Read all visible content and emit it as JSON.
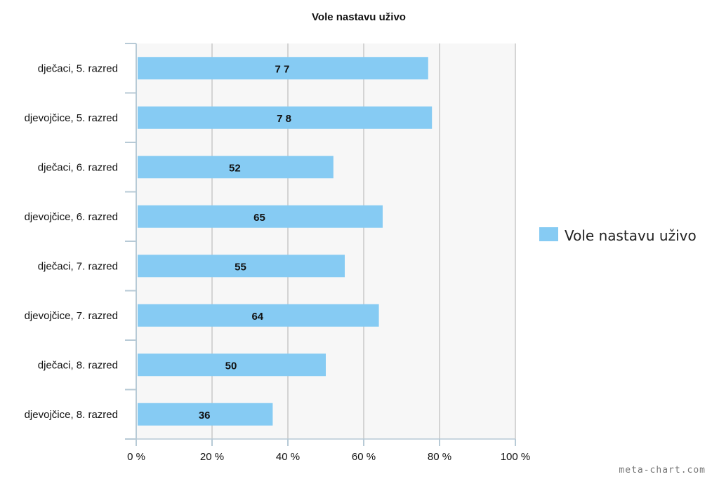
{
  "chart_data": {
    "type": "bar",
    "orientation": "horizontal",
    "title": "Vole nastavu uživo",
    "categories": [
      "dječaci, 5. razred",
      "djevojčice, 5. razred",
      "dječaci, 6. razred",
      "djevojčice, 6. razred",
      "dječaci, 7. razred",
      "djevojčice, 7. razred",
      "dječaci, 8. razred",
      "djevojčice, 8. razred"
    ],
    "series": [
      {
        "name": "Vole nastavu uživo",
        "values": [
          77,
          78,
          52,
          65,
          55,
          64,
          50,
          36
        ],
        "labels": [
          "7 7",
          "7 8",
          "52",
          "65",
          "55",
          "64",
          "50",
          "36"
        ],
        "color": "#86cbf3"
      }
    ],
    "xlim": [
      0,
      100
    ],
    "x_ticks": [
      0,
      20,
      40,
      60,
      80,
      100
    ],
    "x_tick_labels": [
      "0 %",
      "20 %",
      "40 %",
      "60 %",
      "80 %",
      "100 %"
    ],
    "grid": true,
    "legend_position": "right",
    "colors": {
      "bar": "#86cbf3",
      "plot_background": "#f7f7f7",
      "grid": "#c8c8c8",
      "axis": "#b7cad6"
    }
  },
  "watermark": "meta-chart.com"
}
